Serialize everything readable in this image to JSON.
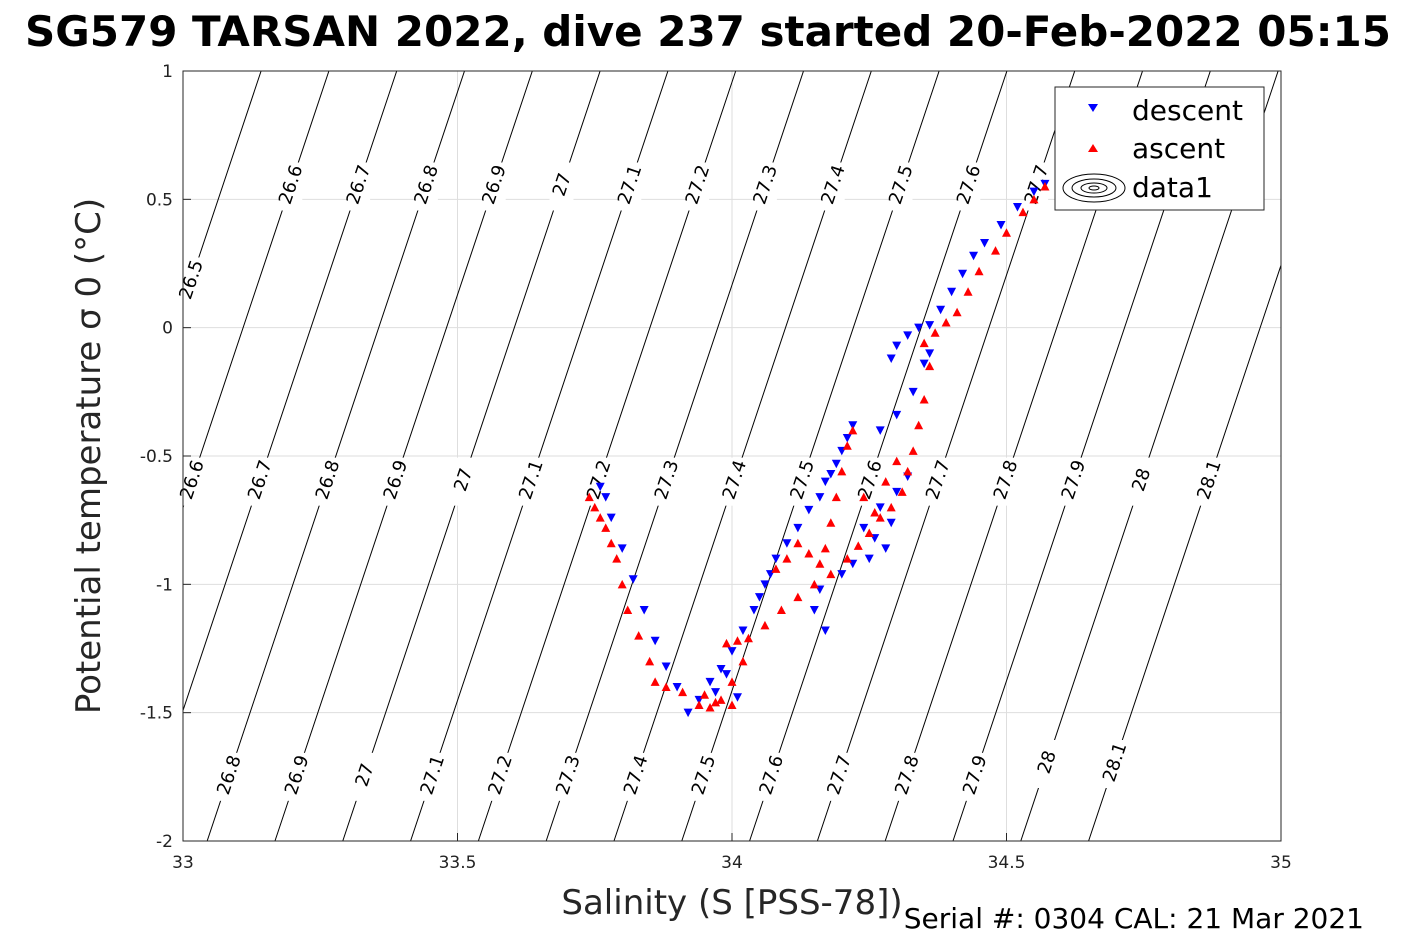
{
  "chart_data": {
    "type": "scatter",
    "title": "SG579 TARSAN 2022, dive 237 started 20-Feb-2022 05:15",
    "xlabel": "Salinity (S [PSS-78])",
    "ylabel": "Potential temperature σ 0 (°C)",
    "xlim": [
      33,
      35
    ],
    "ylim": [
      -2,
      1
    ],
    "x_ticks": [
      "33",
      "33.5",
      "34",
      "34.5",
      "35"
    ],
    "y_ticks": [
      "1",
      "0.5",
      "0",
      "-0.5",
      "-1",
      "-1.5",
      "-2"
    ],
    "grid": true,
    "legend_position": "top-right",
    "legend": [
      "descent",
      "ascent",
      "data1"
    ],
    "colors": {
      "descent": "#0000ff",
      "ascent": "#ff0000",
      "contour": "#000000"
    },
    "density_contour_levels": [
      "26.5",
      "26.6",
      "26.7",
      "26.8",
      "26.9",
      "27",
      "27.1",
      "27.2",
      "27.3",
      "27.4",
      "27.5",
      "27.6",
      "27.7",
      "27.8",
      "27.9",
      "28",
      "28.1"
    ],
    "series": [
      {
        "name": "descent",
        "marker": "triangle-down",
        "points": [
          [
            34.57,
            0.56
          ],
          [
            34.55,
            0.53
          ],
          [
            34.52,
            0.47
          ],
          [
            34.49,
            0.4
          ],
          [
            34.46,
            0.33
          ],
          [
            34.44,
            0.28
          ],
          [
            34.42,
            0.21
          ],
          [
            34.4,
            0.14
          ],
          [
            34.38,
            0.07
          ],
          [
            34.36,
            0.01
          ],
          [
            34.34,
            0.0
          ],
          [
            34.32,
            -0.03
          ],
          [
            34.3,
            -0.07
          ],
          [
            34.29,
            -0.12
          ],
          [
            34.36,
            -0.1
          ],
          [
            34.35,
            -0.14
          ],
          [
            34.33,
            -0.25
          ],
          [
            34.3,
            -0.34
          ],
          [
            34.27,
            -0.4
          ],
          [
            34.22,
            -0.38
          ],
          [
            34.21,
            -0.43
          ],
          [
            34.2,
            -0.48
          ],
          [
            34.19,
            -0.53
          ],
          [
            34.18,
            -0.57
          ],
          [
            34.17,
            -0.6
          ],
          [
            34.16,
            -0.66
          ],
          [
            34.14,
            -0.71
          ],
          [
            34.12,
            -0.78
          ],
          [
            34.1,
            -0.84
          ],
          [
            34.08,
            -0.9
          ],
          [
            34.07,
            -0.96
          ],
          [
            34.06,
            -1.0
          ],
          [
            34.05,
            -1.05
          ],
          [
            34.04,
            -1.1
          ],
          [
            34.02,
            -1.18
          ],
          [
            34.0,
            -1.26
          ],
          [
            33.98,
            -1.33
          ],
          [
            33.96,
            -1.38
          ],
          [
            33.94,
            -1.45
          ],
          [
            33.92,
            -1.5
          ],
          [
            33.9,
            -1.4
          ],
          [
            33.88,
            -1.32
          ],
          [
            33.86,
            -1.22
          ],
          [
            33.84,
            -1.1
          ],
          [
            33.82,
            -0.98
          ],
          [
            33.8,
            -0.86
          ],
          [
            33.78,
            -0.74
          ],
          [
            33.77,
            -0.66
          ],
          [
            33.76,
            -0.62
          ],
          [
            34.24,
            -0.78
          ],
          [
            34.26,
            -0.82
          ],
          [
            34.28,
            -0.86
          ],
          [
            34.25,
            -0.9
          ],
          [
            34.22,
            -0.92
          ],
          [
            34.2,
            -0.96
          ],
          [
            34.16,
            -1.02
          ],
          [
            34.15,
            -1.1
          ],
          [
            34.17,
            -1.18
          ],
          [
            34.27,
            -0.7
          ],
          [
            34.29,
            -0.76
          ],
          [
            34.3,
            -0.64
          ],
          [
            34.32,
            -0.58
          ],
          [
            33.99,
            -1.35
          ],
          [
            33.97,
            -1.42
          ],
          [
            34.01,
            -1.44
          ]
        ]
      },
      {
        "name": "ascent",
        "marker": "triangle-up",
        "points": [
          [
            34.57,
            0.55
          ],
          [
            34.55,
            0.5
          ],
          [
            34.53,
            0.45
          ],
          [
            34.5,
            0.37
          ],
          [
            34.48,
            0.3
          ],
          [
            34.45,
            0.22
          ],
          [
            34.43,
            0.14
          ],
          [
            34.41,
            0.06
          ],
          [
            34.39,
            0.02
          ],
          [
            34.37,
            -0.02
          ],
          [
            34.35,
            -0.06
          ],
          [
            34.36,
            -0.15
          ],
          [
            34.35,
            -0.28
          ],
          [
            34.34,
            -0.38
          ],
          [
            34.33,
            -0.48
          ],
          [
            34.32,
            -0.56
          ],
          [
            34.31,
            -0.64
          ],
          [
            34.29,
            -0.7
          ],
          [
            34.27,
            -0.74
          ],
          [
            34.25,
            -0.8
          ],
          [
            34.23,
            -0.85
          ],
          [
            34.21,
            -0.9
          ],
          [
            34.18,
            -0.96
          ],
          [
            34.15,
            -1.0
          ],
          [
            34.12,
            -1.05
          ],
          [
            34.09,
            -1.1
          ],
          [
            34.06,
            -1.16
          ],
          [
            34.03,
            -1.21
          ],
          [
            34.01,
            -1.22
          ],
          [
            33.99,
            -1.23
          ],
          [
            34.02,
            -1.3
          ],
          [
            34.0,
            -1.38
          ],
          [
            33.98,
            -1.45
          ],
          [
            33.96,
            -1.48
          ],
          [
            33.94,
            -1.47
          ],
          [
            33.91,
            -1.42
          ],
          [
            33.88,
            -1.4
          ],
          [
            33.86,
            -1.38
          ],
          [
            33.85,
            -1.3
          ],
          [
            33.83,
            -1.2
          ],
          [
            33.81,
            -1.1
          ],
          [
            33.8,
            -1.0
          ],
          [
            33.79,
            -0.9
          ],
          [
            33.78,
            -0.84
          ],
          [
            33.77,
            -0.78
          ],
          [
            33.76,
            -0.74
          ],
          [
            33.75,
            -0.7
          ],
          [
            33.74,
            -0.66
          ],
          [
            34.22,
            -0.4
          ],
          [
            34.21,
            -0.46
          ],
          [
            34.2,
            -0.56
          ],
          [
            34.19,
            -0.66
          ],
          [
            34.18,
            -0.76
          ],
          [
            34.17,
            -0.86
          ],
          [
            34.16,
            -0.92
          ],
          [
            34.14,
            -0.88
          ],
          [
            34.12,
            -0.84
          ],
          [
            34.1,
            -0.9
          ],
          [
            34.08,
            -0.94
          ],
          [
            34.24,
            -0.66
          ],
          [
            34.26,
            -0.72
          ],
          [
            34.28,
            -0.6
          ],
          [
            34.3,
            -0.52
          ],
          [
            33.95,
            -1.43
          ],
          [
            33.97,
            -1.46
          ],
          [
            34.0,
            -1.47
          ]
        ]
      }
    ]
  },
  "footer": {
    "serial": "Serial #: 0304  CAL: 21 Mar 2021"
  }
}
